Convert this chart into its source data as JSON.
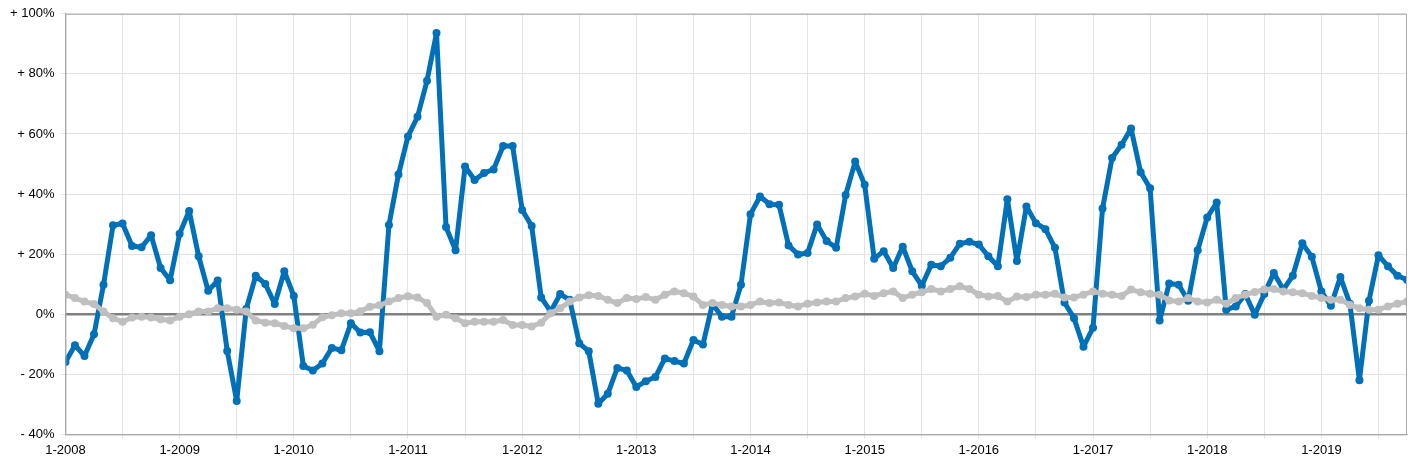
{
  "chart_data": {
    "type": "line",
    "marker": "circle",
    "grid": true,
    "legend": false,
    "xlim": [
      "2008-01",
      "2019-10"
    ],
    "xticks": [
      {
        "value": "2008-01",
        "label": "1-2008"
      },
      {
        "value": "2008-07",
        "label": null
      },
      {
        "value": "2009-01",
        "label": "1-2009"
      },
      {
        "value": "2009-07",
        "label": null
      },
      {
        "value": "2010-01",
        "label": "1-2010"
      },
      {
        "value": "2010-07",
        "label": null
      },
      {
        "value": "2011-01",
        "label": "1-2011"
      },
      {
        "value": "2011-07",
        "label": null
      },
      {
        "value": "2012-01",
        "label": "1-2012"
      },
      {
        "value": "2012-07",
        "label": null
      },
      {
        "value": "2013-01",
        "label": "1-2013"
      },
      {
        "value": "2013-07",
        "label": null
      },
      {
        "value": "2014-01",
        "label": "1-2014"
      },
      {
        "value": "2014-07",
        "label": null
      },
      {
        "value": "2015-01",
        "label": "1-2015"
      },
      {
        "value": "2015-07",
        "label": null
      },
      {
        "value": "2016-01",
        "label": "1-2016"
      },
      {
        "value": "2016-07",
        "label": null
      },
      {
        "value": "2017-01",
        "label": "1-2017"
      },
      {
        "value": "2017-07",
        "label": null
      },
      {
        "value": "2018-01",
        "label": "1-2018"
      },
      {
        "value": "2018-07",
        "label": null
      },
      {
        "value": "2019-01",
        "label": "1-2019"
      },
      {
        "value": "2019-07",
        "label": null
      }
    ],
    "ylim": [
      -40,
      100
    ],
    "yticks": [
      {
        "value": -40,
        "label": "- 40%"
      },
      {
        "value": -20,
        "label": "- 20%"
      },
      {
        "value": 0,
        "label": "0%"
      },
      {
        "value": 20,
        "label": "+ 20%"
      },
      {
        "value": 40,
        "label": "+ 40%"
      },
      {
        "value": 60,
        "label": "+ 60%"
      },
      {
        "value": 80,
        "label": "+ 80%"
      },
      {
        "value": 100,
        "label": "+ 100%"
      }
    ],
    "ref_lines": [
      {
        "axis": "y",
        "value": 0,
        "label": null,
        "color": "#808080"
      }
    ],
    "x": [
      "2008-01",
      "2008-02",
      "2008-03",
      "2008-04",
      "2008-05",
      "2008-06",
      "2008-07",
      "2008-08",
      "2008-09",
      "2008-10",
      "2008-11",
      "2008-12",
      "2009-01",
      "2009-02",
      "2009-03",
      "2009-04",
      "2009-05",
      "2009-06",
      "2009-07",
      "2009-08",
      "2009-09",
      "2009-10",
      "2009-11",
      "2009-12",
      "2010-01",
      "2010-02",
      "2010-03",
      "2010-04",
      "2010-05",
      "2010-06",
      "2010-07",
      "2010-08",
      "2010-09",
      "2010-10",
      "2010-11",
      "2010-12",
      "2011-01",
      "2011-02",
      "2011-03",
      "2011-04",
      "2011-05",
      "2011-06",
      "2011-07",
      "2011-08",
      "2011-09",
      "2011-10",
      "2011-11",
      "2011-12",
      "2012-01",
      "2012-02",
      "2012-03",
      "2012-04",
      "2012-05",
      "2012-06",
      "2012-07",
      "2012-08",
      "2012-09",
      "2012-10",
      "2012-11",
      "2012-12",
      "2013-01",
      "2013-02",
      "2013-03",
      "2013-04",
      "2013-05",
      "2013-06",
      "2013-07",
      "2013-08",
      "2013-09",
      "2013-10",
      "2013-11",
      "2013-12",
      "2014-01",
      "2014-02",
      "2014-03",
      "2014-04",
      "2014-05",
      "2014-06",
      "2014-07",
      "2014-08",
      "2014-09",
      "2014-10",
      "2014-11",
      "2014-12",
      "2015-01",
      "2015-02",
      "2015-03",
      "2015-04",
      "2015-05",
      "2015-06",
      "2015-07",
      "2015-08",
      "2015-09",
      "2015-10",
      "2015-11",
      "2015-12",
      "2016-01",
      "2016-02",
      "2016-03",
      "2016-04",
      "2016-05",
      "2016-06",
      "2016-07",
      "2016-08",
      "2016-09",
      "2016-10",
      "2016-11",
      "2016-12",
      "2017-01",
      "2017-02",
      "2017-03",
      "2017-04",
      "2017-05",
      "2017-06",
      "2017-07",
      "2017-08",
      "2017-09",
      "2017-10",
      "2017-11",
      "2017-12",
      "2018-01",
      "2018-02",
      "2018-03",
      "2018-04",
      "2018-05",
      "2018-06",
      "2018-07",
      "2018-08",
      "2018-09",
      "2018-10",
      "2018-11",
      "2018-12",
      "2019-01",
      "2019-02",
      "2019-03",
      "2019-04",
      "2019-05",
      "2019-06",
      "2019-07",
      "2019-08",
      "2019-09",
      "2019-10"
    ],
    "series": [
      {
        "color": "#bfbfbf",
        "values": [
          6.5,
          5.4,
          4.2,
          3.4,
          0.9,
          -1.3,
          -2.5,
          -1.1,
          -0.8,
          -1.1,
          -1.7,
          -2.1,
          -0.8,
          0,
          0.9,
          0.9,
          2.0,
          2.0,
          1.5,
          0.9,
          -2.1,
          -2.8,
          -3.0,
          -3.9,
          -4.7,
          -4.7,
          -3.5,
          -1.0,
          -0.3,
          0.3,
          0.3,
          1.0,
          2.5,
          3.0,
          4.2,
          5.4,
          6.0,
          5.6,
          3.7,
          -0.8,
          -0.2,
          -1.3,
          -3.0,
          -2.5,
          -2.5,
          -2.5,
          -1.9,
          -3.6,
          -3.6,
          -4.1,
          -2.8,
          0.3,
          2.0,
          4.2,
          5.6,
          6.3,
          6.1,
          4.8,
          3.7,
          5.4,
          5.1,
          5.7,
          4.8,
          6.5,
          7.6,
          7.0,
          5.9,
          3.1,
          3.7,
          3.1,
          2.6,
          2.6,
          3.1,
          4.2,
          3.7,
          3.9,
          3.1,
          2.6,
          3.5,
          3.9,
          4.2,
          4.2,
          5.4,
          5.9,
          6.8,
          6.1,
          7.0,
          7.6,
          5.4,
          6.5,
          7.3,
          8.4,
          7.6,
          8.4,
          9.3,
          8.4,
          6.5,
          5.9,
          6.1,
          4.2,
          5.9,
          5.7,
          6.5,
          6.5,
          6.8,
          5.6,
          5.6,
          6.5,
          7.6,
          6.8,
          6.5,
          6.1,
          8.2,
          7.3,
          6.8,
          6.5,
          4.6,
          4.2,
          5.4,
          4.2,
          3.9,
          4.8,
          3.5,
          5.4,
          6.5,
          7.4,
          8.2,
          8.4,
          7.6,
          7.3,
          7.0,
          6.1,
          5.4,
          4.8,
          4.8,
          3.1,
          2.0,
          1.5,
          1.5,
          2.6,
          3.5,
          4.2
        ]
      },
      {
        "color": "#0070b8",
        "values": [
          -15.9,
          -10.3,
          -13.9,
          -6.7,
          9.8,
          29.6,
          30.2,
          22.7,
          22.3,
          26.3,
          15.4,
          11.3,
          26.8,
          34.4,
          19.3,
          7.8,
          11.2,
          -12.2,
          -28.9,
          1.7,
          12.8,
          10.1,
          3.4,
          14.3,
          6.1,
          -17.2,
          -18.7,
          -16.4,
          -11.2,
          -12.0,
          -3.0,
          -6.1,
          -6.0,
          -12.3,
          29.7,
          46.5,
          59.2,
          65.7,
          77.7,
          93.6,
          29.0,
          21.3,
          49.2,
          44.7,
          47.0,
          48.2,
          56.0,
          56.0,
          34.7,
          29.4,
          5.6,
          0.9,
          6.7,
          4.8,
          -9.7,
          -12.3,
          -29.8,
          -26.5,
          -17.9,
          -18.7,
          -24.2,
          -22.3,
          -20.9,
          -14.7,
          -15.6,
          -16.4,
          -8.6,
          -10.1,
          3.4,
          -0.8,
          -0.8,
          9.8,
          33.3,
          39.2,
          36.6,
          36.4,
          22.9,
          19.9,
          20.4,
          29.9,
          24.4,
          22.1,
          39.7,
          50.8,
          43.1,
          18.5,
          21.0,
          15.4,
          22.5,
          14.3,
          9.5,
          16.5,
          16.0,
          18.8,
          23.5,
          24.1,
          23.2,
          19.3,
          16.0,
          38.3,
          17.7,
          35.9,
          30.3,
          28.3,
          22.1,
          3.9,
          -1.3,
          -10.8,
          -4.5,
          35.2,
          52.0,
          56.4,
          61.8,
          47.3,
          41.9,
          -2.1,
          10.2,
          9.8,
          4.5,
          21.3,
          32.2,
          37.2,
          1.5,
          2.6,
          6.7,
          -0.2,
          6.7,
          13.7,
          8.2,
          12.8,
          23.6,
          19.1,
          7.6,
          2.8,
          12.4,
          3.5,
          -22.0,
          4.5,
          19.6,
          16.0,
          12.8,
          11.5
        ]
      }
    ]
  }
}
